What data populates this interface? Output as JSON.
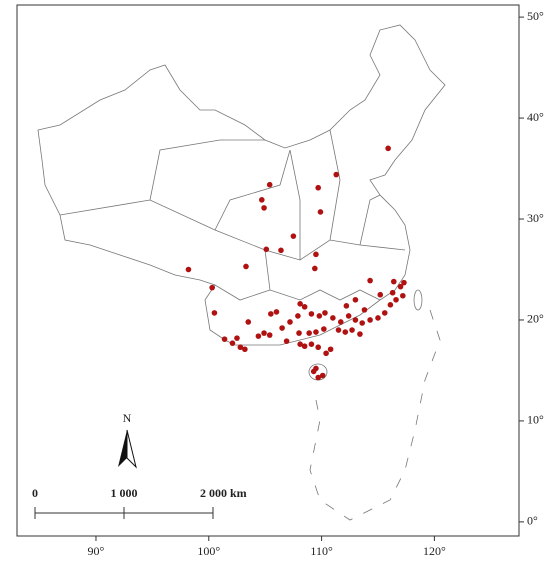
{
  "chart_data": {
    "type": "scatter",
    "x": [
      115.9,
      111.3,
      105.4,
      109.7,
      104.7,
      104.9,
      109.9,
      107.5,
      105.1,
      109.5,
      103.3,
      98.2,
      106.4,
      114.3,
      109.4,
      100.3,
      100.5,
      101.4,
      102.1,
      102.8,
      104.4,
      104.9,
      106.0,
      105.5,
      107.2,
      107.9,
      108.1,
      108.5,
      109.1,
      109.8,
      110.3,
      111.0,
      111.7,
      112.4,
      113.0,
      113.6,
      114.3,
      115.0,
      115.6,
      116.1,
      116.6,
      117.0,
      117.3,
      108.9,
      109.5,
      110.2,
      111.5,
      112.1,
      112.7,
      113.4,
      108.1,
      108.5,
      109.1,
      109.7,
      110.4,
      110.8,
      109.3,
      109.7,
      110.1,
      109.5,
      108.0,
      106.9,
      106.5,
      103.5,
      103.2,
      105.4,
      102.5,
      113.0,
      113.8,
      112.2,
      116.3,
      115.2,
      117.2,
      116.4
    ],
    "values": [
      37.0,
      34.4,
      33.4,
      33.1,
      31.9,
      31.1,
      30.7,
      28.3,
      27.0,
      26.5,
      25.3,
      25.0,
      26.9,
      23.9,
      25.1,
      23.2,
      20.7,
      18.1,
      17.7,
      17.3,
      18.4,
      18.7,
      20.8,
      20.6,
      19.8,
      20.4,
      21.6,
      21.3,
      20.6,
      20.4,
      20.7,
      20.2,
      19.8,
      20.4,
      20.0,
      19.7,
      20.0,
      20.2,
      20.7,
      21.5,
      22.0,
      23.3,
      23.7,
      18.7,
      18.8,
      19.1,
      19.0,
      18.8,
      19.0,
      18.6,
      17.6,
      17.4,
      17.6,
      17.3,
      16.7,
      17.1,
      14.9,
      14.3,
      14.5,
      15.2,
      18.7,
      17.9,
      19.2,
      19.8,
      17.1,
      18.5,
      18.2,
      22.0,
      21.0,
      21.4,
      22.7,
      22.5,
      22.4,
      23.8
    ],
    "color": "#b01212",
    "xlim": [
      83,
      127.5
    ],
    "ylim": [
      -1.4,
      51.2
    ],
    "xticks": [
      {
        "value": 90,
        "label": "90°"
      },
      {
        "value": 100,
        "label": "100°"
      },
      {
        "value": 110,
        "label": "110°"
      },
      {
        "value": 120,
        "label": "120°"
      }
    ],
    "yticks": [
      {
        "value": 0,
        "label": "0°"
      },
      {
        "value": 10,
        "label": "10°"
      },
      {
        "value": 20,
        "label": "20°"
      },
      {
        "value": 30,
        "label": "30°"
      },
      {
        "value": 40,
        "label": "40°"
      },
      {
        "value": 50,
        "label": "50°"
      }
    ]
  },
  "map_labels": {
    "north": "N",
    "scale": [
      "0",
      "1 000",
      "2 000 km"
    ]
  }
}
